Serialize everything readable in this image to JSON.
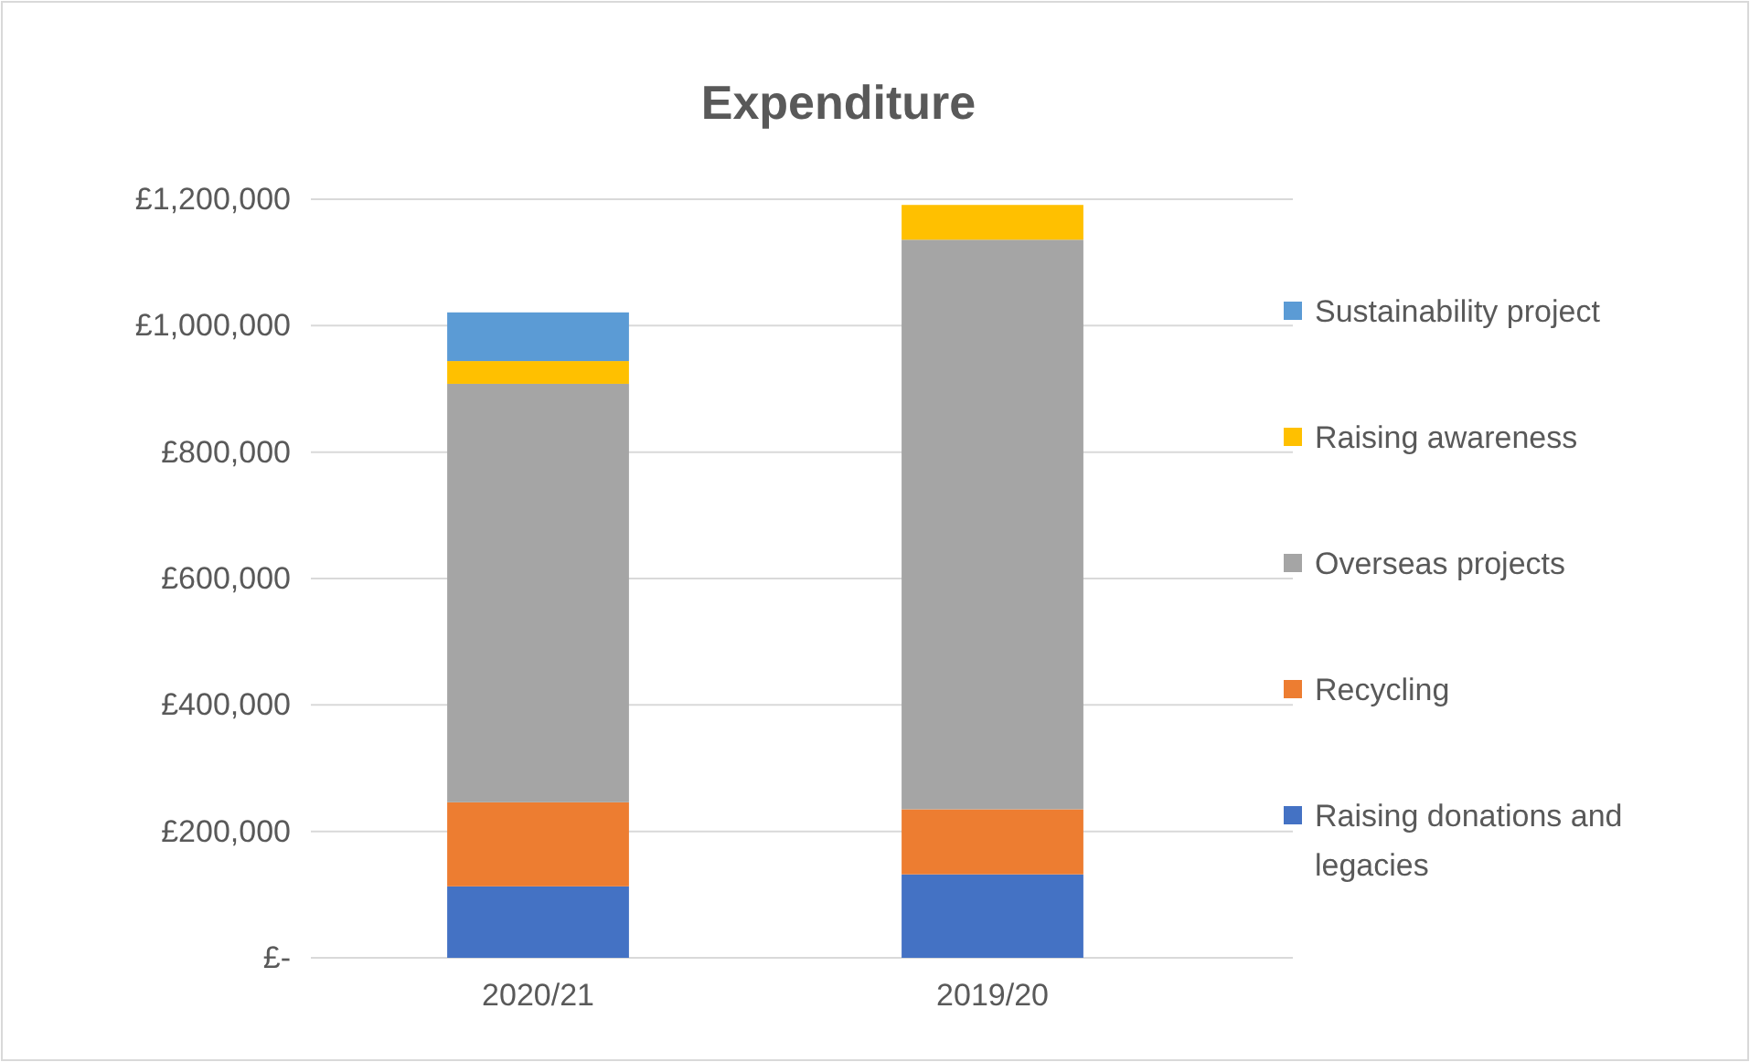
{
  "chart_data": {
    "type": "bar",
    "title": "Expenditure",
    "stacked": true,
    "categories": [
      "2020/21",
      "2019/20"
    ],
    "series": [
      {
        "name": "Raising donations and legacies",
        "color": "#4472c4",
        "values": [
          113000,
          132000
        ]
      },
      {
        "name": "Recycling",
        "color": "#ed7d31",
        "values": [
          133000,
          103000
        ]
      },
      {
        "name": "Overseas projects",
        "color": "#a5a5a5",
        "values": [
          662000,
          901000
        ]
      },
      {
        "name": "Raising awareness",
        "color": "#ffc000",
        "values": [
          36000,
          55000
        ]
      },
      {
        "name": "Sustainability project",
        "color": "#5b9bd5",
        "values": [
          77000,
          null
        ]
      }
    ],
    "ylim": [
      0,
      1200000
    ],
    "yticks": [
      {
        "value": 0,
        "label": "£-"
      },
      {
        "value": 200000,
        "label": "£200,000"
      },
      {
        "value": 400000,
        "label": "£400,000"
      },
      {
        "value": 600000,
        "label": "£600,000"
      },
      {
        "value": 800000,
        "label": "£800,000"
      },
      {
        "value": 1000000,
        "label": "£1,000,000"
      },
      {
        "value": 1200000,
        "label": "£1,200,000"
      }
    ],
    "grid": "y",
    "legend": "right"
  }
}
